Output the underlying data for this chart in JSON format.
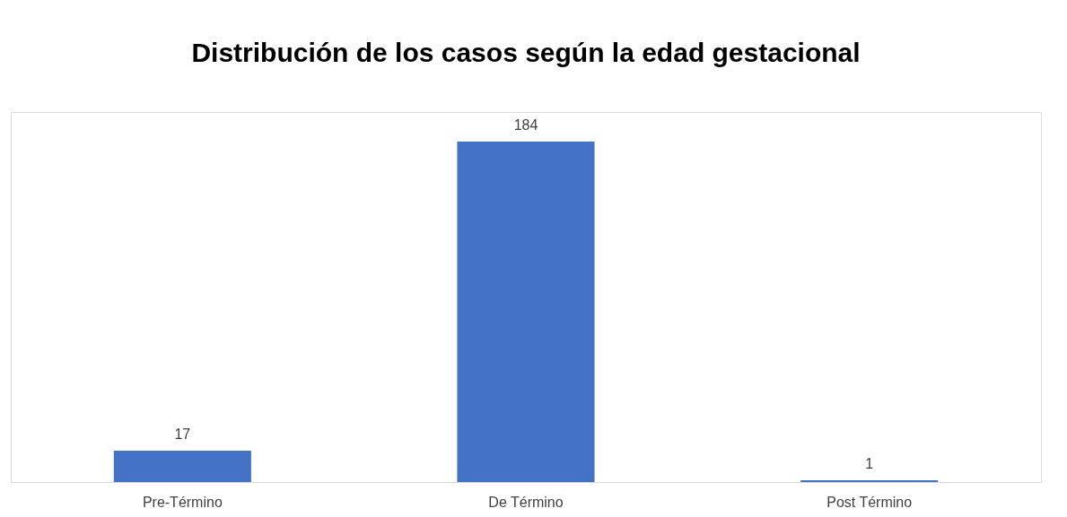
{
  "chart_data": {
    "type": "bar",
    "title": "Distribución de los casos según la edad gestacional",
    "categories": [
      "Pre-Término",
      "De Término",
      "Post Término"
    ],
    "values": [
      17,
      184,
      1
    ],
    "color": "#4472c4",
    "data_labels": true
  }
}
